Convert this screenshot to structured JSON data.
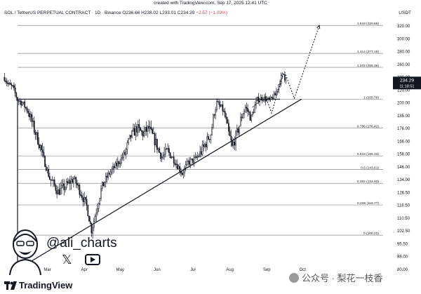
{
  "header": {
    "created": "created with TradingView.com, Sep 17, 2025 12:41 UTC",
    "symbol": "SOL / TetherUS PERPETUAL CONTRACT · 1D · Binance",
    "ohlc": "O236.66 H238.02 L233.01 C234.29",
    "change": "−2.57 (−1.09%)",
    "currency": "USDT"
  },
  "price_badge": {
    "price": "234.29",
    "countdown": "11:18:51"
  },
  "branding": {
    "handle": "@ali_charts",
    "logo_text": "TradingView",
    "watermark": "公众号 · 梨花一枝香"
  },
  "chart_data": {
    "type": "candlestick",
    "y_axis_ticks": [
      80.0,
      88.0,
      95.5,
      102.5,
      110.5,
      118.5,
      126.5,
      134.0,
      146.0,
      158.0,
      166.0,
      176.0,
      185.0,
      200.0,
      220.0,
      240.0,
      260.0,
      280.0,
      300.0,
      320.0
    ],
    "y_axis_labels": [
      "80.00",
      "88.00",
      "95.50",
      "102.50",
      "110.50",
      "118.50",
      "126.50",
      "134.00",
      "146.00",
      "158.00",
      "166.00",
      "176.00",
      "185.00",
      "200.00",
      "220.00",
      "240.00",
      "260.00",
      "280.00",
      "300.00",
      "320.00"
    ],
    "x_axis_labels": [
      {
        "label": "eb",
        "date": "2025-02-01"
      },
      {
        "label": "Mar",
        "date": "2025-03-01"
      },
      {
        "label": "Apr",
        "date": "2025-04-01"
      },
      {
        "label": "May",
        "date": "2025-05-01"
      },
      {
        "label": "Jun",
        "date": "2025-06-01"
      },
      {
        "label": "Jul",
        "date": "2025-07-01"
      },
      {
        "label": "Aug",
        "date": "2025-08-01"
      },
      {
        "label": "Sep",
        "date": "2025-09-01"
      },
      {
        "label": "Oct",
        "date": "2025-10-01"
      }
    ],
    "fib_levels": [
      {
        "label": "0 (100.22)",
        "value": 100.22
      },
      {
        "label": "0.236 (118.77)",
        "value": 118.77
      },
      {
        "label": "0.382 (131.92)",
        "value": 131.92
      },
      {
        "label": "0.5 (143.61)",
        "value": 143.61
      },
      {
        "label": "0.618 (156.33)",
        "value": 156.33
      },
      {
        "label": "0.786 (176.42)",
        "value": 176.42
      },
      {
        "label": "1 (205.78)",
        "value": 205.78
      },
      {
        "label": "1.272 (255.36)",
        "value": 255.36
      },
      {
        "label": "1.414 (277.18)",
        "value": 277.18
      },
      {
        "label": "1.618 (320.86)",
        "value": 320.86
      }
    ],
    "last_price": 234.29,
    "horizontal_resistance": {
      "value": 205.78,
      "from": "2025-02-04",
      "to": "2025-09-12"
    },
    "ascending_trendline": {
      "from": {
        "date": "2025-02-04",
        "value": 80.0
      },
      "to": {
        "date": "2025-09-30",
        "value": 205.78
      }
    },
    "projection_path": [
      {
        "date": "2025-09-12",
        "value": 232
      },
      {
        "date": "2025-09-16",
        "value": 248
      },
      {
        "date": "2025-09-24",
        "value": 207
      },
      {
        "date": "2025-10-15",
        "value": 320.86
      }
    ],
    "prior_projection_path": [
      {
        "date": "2025-08-20",
        "value": 195
      },
      {
        "date": "2025-08-31",
        "value": 210
      },
      {
        "date": "2025-09-05",
        "value": 188
      },
      {
        "date": "2025-09-13",
        "value": 235
      }
    ],
    "waypoints": [
      {
        "date": "2025-01-24",
        "close": 240
      },
      {
        "date": "2025-01-27",
        "close": 229
      },
      {
        "date": "2025-01-31",
        "close": 224
      },
      {
        "date": "2025-02-04",
        "close": 205
      },
      {
        "date": "2025-02-08",
        "close": 200
      },
      {
        "date": "2025-02-12",
        "close": 192
      },
      {
        "date": "2025-02-18",
        "close": 175
      },
      {
        "date": "2025-02-24",
        "close": 160
      },
      {
        "date": "2025-02-28",
        "close": 146
      },
      {
        "date": "2025-03-03",
        "close": 135
      },
      {
        "date": "2025-03-10",
        "close": 127
      },
      {
        "date": "2025-03-16",
        "close": 130
      },
      {
        "date": "2025-03-23",
        "close": 135
      },
      {
        "date": "2025-03-28",
        "close": 128
      },
      {
        "date": "2025-04-03",
        "close": 118
      },
      {
        "date": "2025-04-07",
        "close": 103
      },
      {
        "date": "2025-04-10",
        "close": 112
      },
      {
        "date": "2025-04-15",
        "close": 128
      },
      {
        "date": "2025-04-22",
        "close": 140
      },
      {
        "date": "2025-04-28",
        "close": 148
      },
      {
        "date": "2025-05-05",
        "close": 158
      },
      {
        "date": "2025-05-10",
        "close": 170
      },
      {
        "date": "2025-05-15",
        "close": 176
      },
      {
        "date": "2025-05-20",
        "close": 172
      },
      {
        "date": "2025-05-25",
        "close": 176
      },
      {
        "date": "2025-05-31",
        "close": 165
      },
      {
        "date": "2025-06-05",
        "close": 155
      },
      {
        "date": "2025-06-10",
        "close": 160
      },
      {
        "date": "2025-06-15",
        "close": 153
      },
      {
        "date": "2025-06-22",
        "close": 140
      },
      {
        "date": "2025-06-27",
        "close": 150
      },
      {
        "date": "2025-07-03",
        "close": 153
      },
      {
        "date": "2025-07-10",
        "close": 162
      },
      {
        "date": "2025-07-16",
        "close": 172
      },
      {
        "date": "2025-07-21",
        "close": 200
      },
      {
        "date": "2025-07-26",
        "close": 192
      },
      {
        "date": "2025-07-31",
        "close": 172
      },
      {
        "date": "2025-08-03",
        "close": 162
      },
      {
        "date": "2025-08-08",
        "close": 175
      },
      {
        "date": "2025-08-14",
        "close": 195
      },
      {
        "date": "2025-08-19",
        "close": 183
      },
      {
        "date": "2025-08-24",
        "close": 205
      },
      {
        "date": "2025-08-29",
        "close": 208
      },
      {
        "date": "2025-09-03",
        "close": 203
      },
      {
        "date": "2025-09-08",
        "close": 212
      },
      {
        "date": "2025-09-12",
        "close": 235
      },
      {
        "date": "2025-09-15",
        "close": 245
      },
      {
        "date": "2025-09-17",
        "close": 234.29
      }
    ]
  }
}
